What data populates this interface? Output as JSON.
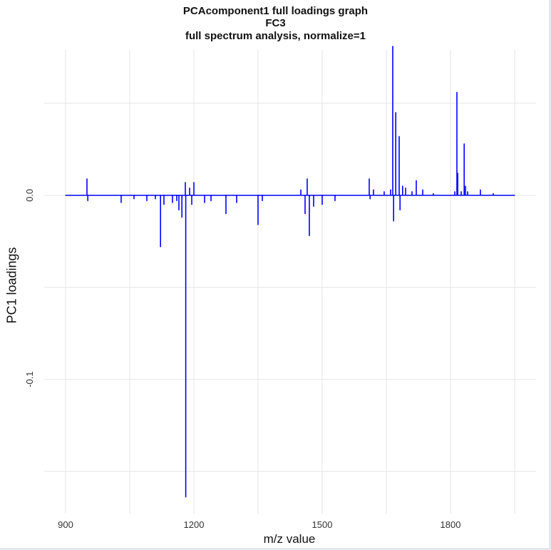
{
  "chart_data": {
    "type": "line",
    "title": "PCAcomponent1 full loadings graph",
    "subtitle_line1": "FC3",
    "subtitle_line2": "full spectrum analysis, normalize=1",
    "xlabel": "m/z value",
    "ylabel": "PC1 loadings",
    "xlim": [
      850,
      2000
    ],
    "ylim": [
      -0.173,
      0.079
    ],
    "x_ticks": [
      900,
      1200,
      1500,
      1800
    ],
    "y_ticks": [
      0.0,
      -0.1
    ],
    "y_tick_labels": [
      "0.0",
      "-0.1"
    ],
    "grid": true,
    "series": [
      {
        "color": "#0000ff",
        "x": [
          900,
          950,
          952,
          1030,
          1060,
          1090,
          1110,
          1122,
          1123,
          1130,
          1150,
          1160,
          1165,
          1172,
          1180,
          1181,
          1190,
          1195,
          1200,
          1225,
          1240,
          1275,
          1300,
          1350,
          1360,
          1450,
          1460,
          1465,
          1470,
          1480,
          1500,
          1530,
          1610,
          1612,
          1620,
          1645,
          1660,
          1665,
          1667,
          1672,
          1680,
          1682,
          1688,
          1695,
          1710,
          1720,
          1735,
          1760,
          1810,
          1815,
          1817,
          1825,
          1832,
          1835,
          1840,
          1870,
          1900,
          1950
        ],
        "y": [
          0,
          0.009,
          -0.003,
          -0.004,
          -0.002,
          -0.003,
          -0.002,
          -0.028,
          0.0,
          -0.005,
          -0.004,
          -0.003,
          -0.008,
          -0.012,
          0.007,
          -0.164,
          0.004,
          -0.005,
          0.007,
          -0.004,
          -0.003,
          -0.01,
          -0.004,
          -0.016,
          -0.003,
          0.003,
          -0.01,
          0.009,
          -0.022,
          -0.006,
          -0.005,
          -0.003,
          0.009,
          -0.002,
          0.003,
          0.002,
          0.003,
          0.081,
          -0.014,
          0.045,
          0.032,
          -0.008,
          0.005,
          0.004,
          0.002,
          0.008,
          0.003,
          0.001,
          0.002,
          0.056,
          0.012,
          0.002,
          0.028,
          0.005,
          0.002,
          0.003,
          0.001,
          0
        ]
      }
    ]
  }
}
